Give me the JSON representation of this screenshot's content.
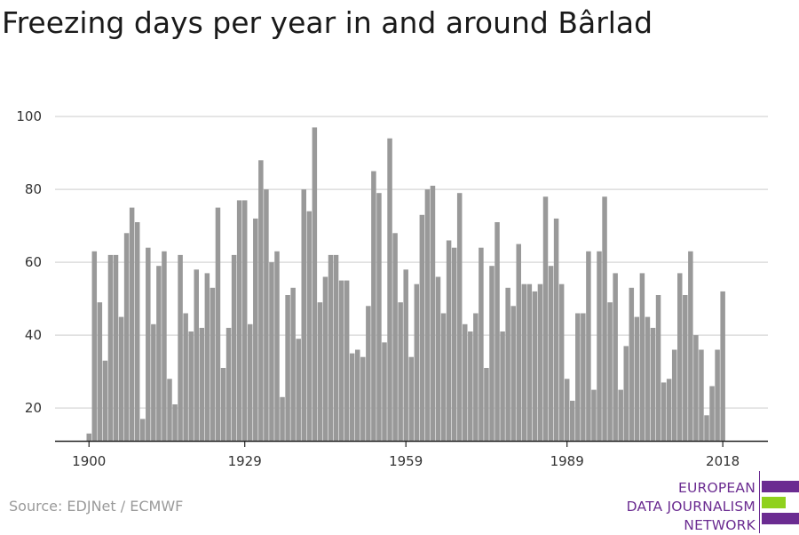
{
  "title": "Freezing days per year in and around Bârlad",
  "source": "Source: EDJNet / ECMWF",
  "logo": {
    "lines": [
      "EUROPEAN",
      "DATA JOURNALISM",
      "NETWORK"
    ],
    "colors": {
      "text": "#6b2c91",
      "bar_purple": "#6b2c91",
      "bar_green": "#8fd11d"
    }
  },
  "colors": {
    "bar": "#999999",
    "grid": "#dddddd",
    "axis": "#222222"
  },
  "chart_data": {
    "type": "bar",
    "title": "Freezing days per year in and around Bârlad",
    "xlabel": "",
    "ylabel": "",
    "x_ticks": [
      "1900",
      "1929",
      "1959",
      "1989",
      "2018"
    ],
    "y_ticks": [
      20,
      40,
      60,
      80,
      100
    ],
    "ylim": [
      11,
      100
    ],
    "grid": true,
    "x_start": 1900,
    "values": [
      13,
      63,
      49,
      33,
      62,
      62,
      45,
      68,
      75,
      71,
      17,
      64,
      43,
      59,
      63,
      28,
      21,
      62,
      46,
      41,
      58,
      42,
      57,
      53,
      75,
      31,
      42,
      62,
      77,
      77,
      43,
      72,
      88,
      80,
      60,
      63,
      23,
      51,
      53,
      39,
      80,
      74,
      97,
      49,
      56,
      62,
      62,
      55,
      55,
      35,
      36,
      34,
      48,
      85,
      79,
      38,
      94,
      68,
      49,
      58,
      34,
      54,
      73,
      80,
      81,
      56,
      46,
      66,
      64,
      79,
      43,
      41,
      46,
      64,
      31,
      59,
      71,
      41,
      53,
      48,
      65,
      54,
      54,
      52,
      54,
      78,
      59,
      72,
      54,
      28,
      22,
      46,
      46,
      63,
      25,
      63,
      78,
      49,
      57,
      25,
      37,
      53,
      45,
      57,
      45,
      42,
      51,
      27,
      28,
      36,
      57,
      51,
      63,
      40,
      36,
      18,
      26,
      36,
      52
    ]
  }
}
